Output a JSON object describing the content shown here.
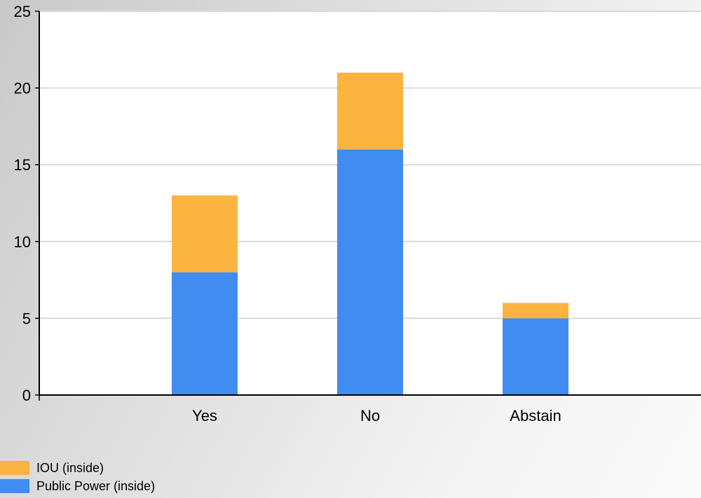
{
  "chart_data": {
    "type": "bar",
    "stacked": true,
    "categories": [
      "Yes",
      "No",
      "Abstain"
    ],
    "series": [
      {
        "name": "Public Power (inside)",
        "values": [
          8,
          16,
          5
        ],
        "color": "#418CF0"
      },
      {
        "name": "IOU (inside)",
        "values": [
          5,
          5,
          1
        ],
        "color": "#FCB441"
      }
    ],
    "y_ticks": [
      "0",
      "5",
      "10",
      "15",
      "20",
      "25"
    ],
    "ylim": [
      0,
      25
    ],
    "grid": true,
    "legend_position": "bottom-left",
    "legend_order": [
      "IOU (inside)",
      "Public Power (inside)"
    ],
    "colors": {
      "plot_background": "#FFFFFF",
      "gridline": "#D9D9D9",
      "axis": "#000000"
    }
  }
}
